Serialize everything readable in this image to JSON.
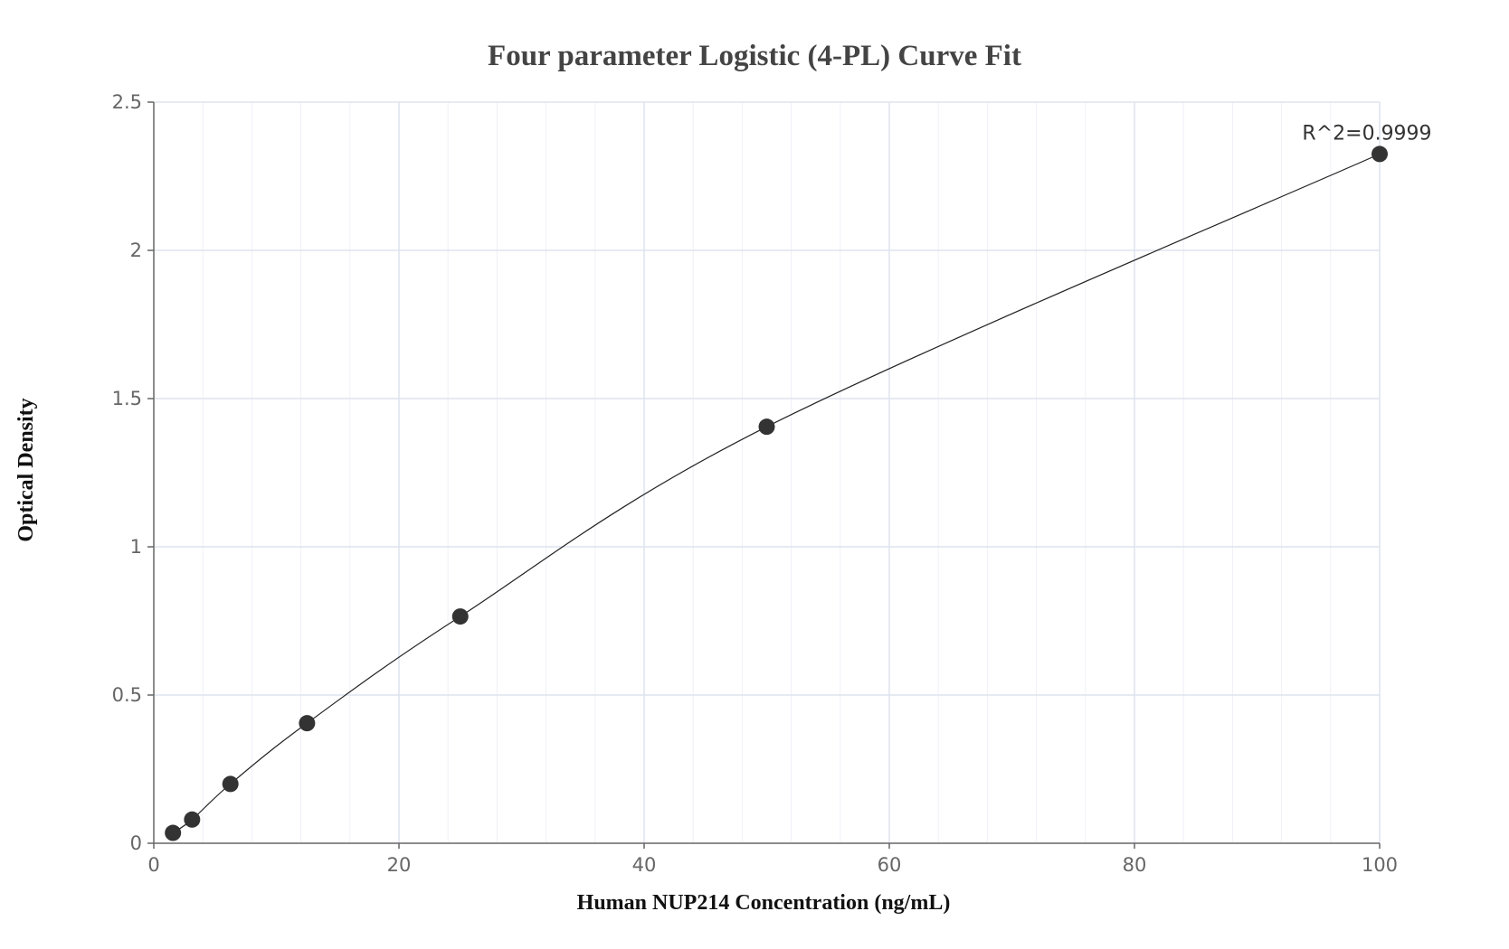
{
  "chart_data": {
    "type": "scatter",
    "title": "Four parameter Logistic (4-PL) Curve Fit",
    "xlabel": "Human NUP214 Concentration (ng/mL)",
    "ylabel": "Optical Density",
    "xlim": [
      0,
      100
    ],
    "ylim": [
      0,
      2.5
    ],
    "x_ticks": [
      "0",
      "20",
      "40",
      "60",
      "80",
      "100"
    ],
    "y_ticks": [
      "0",
      "0.5",
      "1",
      "1.5",
      "2",
      "2.5"
    ],
    "grid": true,
    "annotation": "R^2=0.9999",
    "series": [
      {
        "x": [
          1.5625,
          3.125,
          6.25,
          12.5,
          25,
          50,
          100
        ],
        "y": [
          0.035,
          0.08,
          0.2,
          0.405,
          0.765,
          1.405,
          2.325
        ]
      }
    ],
    "colors": {
      "points": "#333333",
      "curve": "#222222",
      "grid": "#dde3ee"
    }
  }
}
